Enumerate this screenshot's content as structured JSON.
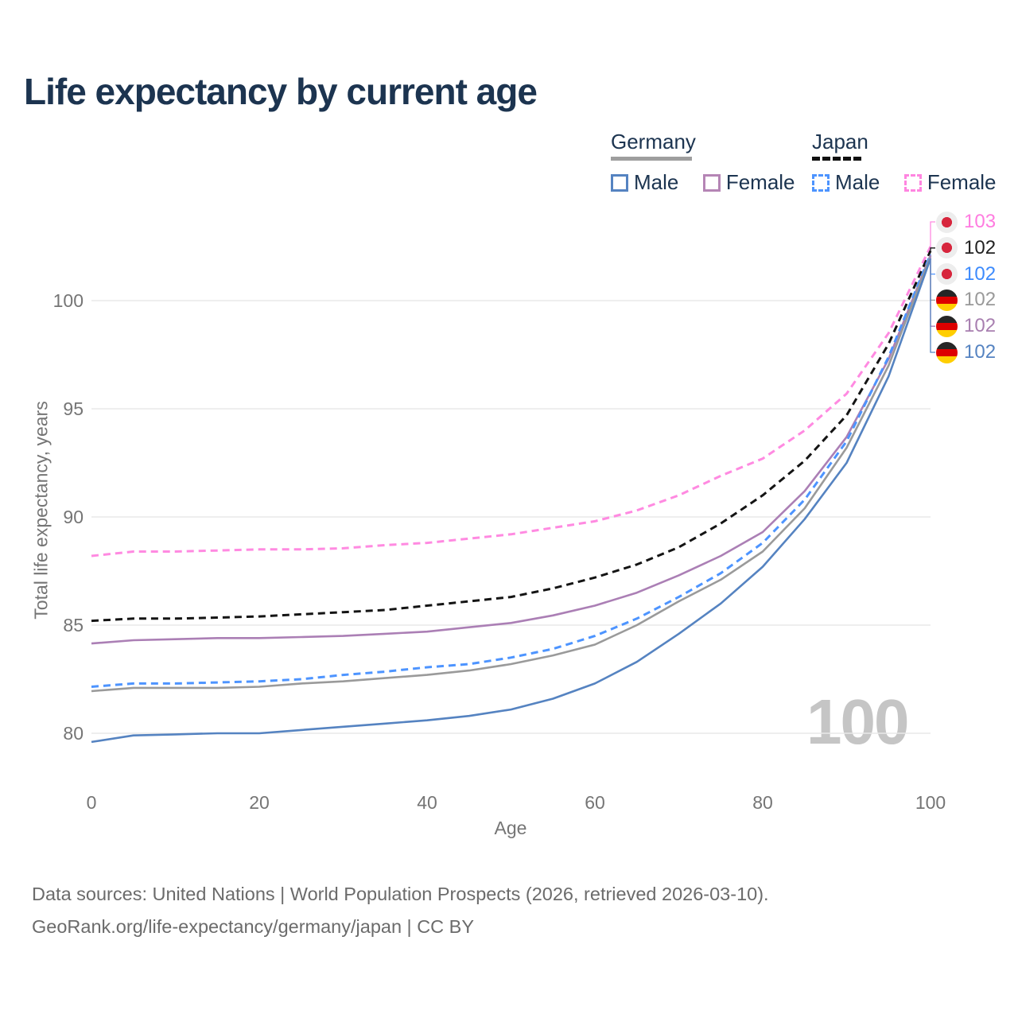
{
  "title": "Life expectancy by current age",
  "watermark": "100",
  "legend": {
    "groups": [
      {
        "label": "Germany",
        "line_style": "solid",
        "underline_color": "#9e9e9e",
        "items": [
          {
            "label": "Male",
            "color": "#5583c1"
          },
          {
            "label": "Female",
            "color": "#b585b5"
          }
        ]
      },
      {
        "label": "Japan",
        "line_style": "dashed",
        "underline_color": "#111111",
        "items": [
          {
            "label": "Male",
            "color": "#4d94ff"
          },
          {
            "label": "Female",
            "color": "#ff85e0"
          }
        ]
      }
    ]
  },
  "chart_data": {
    "type": "line",
    "title": "Life expectancy by current age",
    "xlabel": "Age",
    "ylabel": "Total life expectancy, years",
    "xlim": [
      0,
      100
    ],
    "ylim": [
      78.5,
      103
    ],
    "xticks": [
      0,
      20,
      40,
      60,
      80,
      100
    ],
    "yticks": [
      80,
      85,
      90,
      95,
      100
    ],
    "grid": "horizontal",
    "x": [
      0,
      5,
      10,
      15,
      20,
      25,
      30,
      35,
      40,
      45,
      50,
      55,
      60,
      65,
      70,
      75,
      80,
      85,
      90,
      95,
      100
    ],
    "series": [
      {
        "id": "japan_female",
        "name": "Japan Female",
        "color": "#ff8ae1",
        "dash": true,
        "values": [
          88.2,
          88.4,
          88.4,
          88.45,
          88.5,
          88.5,
          88.55,
          88.7,
          88.8,
          89.0,
          89.2,
          89.5,
          89.8,
          90.3,
          91.0,
          91.9,
          92.7,
          94.0,
          95.7,
          98.5,
          102.5
        ]
      },
      {
        "id": "japan_total",
        "name": "Japan",
        "color": "#141414",
        "dash": true,
        "values": [
          85.2,
          85.3,
          85.3,
          85.35,
          85.4,
          85.5,
          85.6,
          85.7,
          85.9,
          86.1,
          86.3,
          86.7,
          87.2,
          87.8,
          88.6,
          89.7,
          91.0,
          92.6,
          94.7,
          98.0,
          102.3
        ]
      },
      {
        "id": "germany_female",
        "name": "Germany Female",
        "color": "#ab7fb5",
        "dash": false,
        "values": [
          84.15,
          84.3,
          84.35,
          84.4,
          84.4,
          84.45,
          84.5,
          84.6,
          84.7,
          84.9,
          85.1,
          85.45,
          85.9,
          86.5,
          87.3,
          88.2,
          89.3,
          91.2,
          93.7,
          97.3,
          102.1
        ]
      },
      {
        "id": "japan_male",
        "name": "Japan Male",
        "color": "#4d94ff",
        "dash": true,
        "values": [
          82.15,
          82.3,
          82.3,
          82.35,
          82.4,
          82.5,
          82.7,
          82.85,
          83.05,
          83.2,
          83.5,
          83.9,
          84.5,
          85.3,
          86.3,
          87.4,
          88.8,
          90.8,
          93.5,
          97.4,
          102.15
        ]
      },
      {
        "id": "germany_total",
        "name": "Germany",
        "color": "#9a9a9a",
        "dash": false,
        "values": [
          81.95,
          82.1,
          82.1,
          82.1,
          82.15,
          82.3,
          82.4,
          82.55,
          82.7,
          82.9,
          83.2,
          83.6,
          84.1,
          85.0,
          86.1,
          87.1,
          88.4,
          90.4,
          93.2,
          97.0,
          102.05
        ]
      },
      {
        "id": "germany_male",
        "name": "Germany Male",
        "color": "#5583c1",
        "dash": false,
        "values": [
          79.6,
          79.9,
          79.95,
          80.0,
          80.0,
          80.15,
          80.3,
          80.45,
          80.6,
          80.8,
          81.1,
          81.6,
          82.3,
          83.3,
          84.6,
          86.0,
          87.7,
          89.9,
          92.5,
          96.5,
          101.95
        ]
      }
    ],
    "end_labels": [
      {
        "value": "103",
        "series": "japan_female",
        "flag": "japan",
        "color": "#ff7ce0"
      },
      {
        "value": "102",
        "series": "japan_total",
        "flag": "japan",
        "color": "#222222"
      },
      {
        "value": "102",
        "series": "japan_male",
        "flag": "japan",
        "color": "#3d8bfd"
      },
      {
        "value": "102",
        "series": "germany_total",
        "flag": "germany",
        "color": "#999999"
      },
      {
        "value": "102",
        "series": "germany_female",
        "flag": "germany",
        "color": "#a87fb0"
      },
      {
        "value": "102",
        "series": "germany_male",
        "flag": "germany",
        "color": "#5583c1"
      }
    ]
  },
  "footer": {
    "line1": "Data sources: United Nations | World Population Prospects (2026, retrieved 2026-03-10).",
    "line2": "GeoRank.org/life-expectancy/germany/japan | CC BY"
  }
}
